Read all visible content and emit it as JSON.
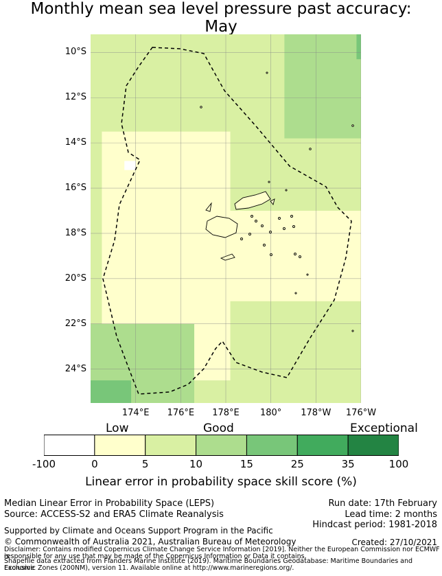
{
  "title_line1": "Monthly mean sea level pressure past accuracy:",
  "title_line2": "May",
  "chart_data": {
    "type": "heatmap",
    "title": "Monthly mean sea level pressure past accuracy: May",
    "lat_ticks": [
      "10°S",
      "12°S",
      "14°S",
      "16°S",
      "18°S",
      "20°S",
      "22°S",
      "24°S"
    ],
    "lon_ticks": [
      "174°E",
      "176°E",
      "178°E",
      "180°",
      "178°W",
      "176°W"
    ],
    "lat_range": [
      -25.5,
      -9.2
    ],
    "lon_range": [
      172.0,
      184.0
    ],
    "grid": true,
    "colorbar": {
      "label": "Linear error in probability space skill score (%)",
      "ticks": [
        "-100",
        "0",
        "5",
        "10",
        "15",
        "25",
        "35",
        "100"
      ],
      "bins": [
        {
          "from": -100,
          "to": 0,
          "color": "#ffffff"
        },
        {
          "from": 0,
          "to": 5,
          "color": "#ffffcc"
        },
        {
          "from": 5,
          "to": 10,
          "color": "#d9f0a3"
        },
        {
          "from": 10,
          "to": 15,
          "color": "#addd8e"
        },
        {
          "from": 15,
          "to": 25,
          "color": "#78c679"
        },
        {
          "from": 25,
          "to": 35,
          "color": "#41ab5d"
        },
        {
          "from": 35,
          "to": 100,
          "color": "#238443"
        }
      ],
      "categories": [
        "Low",
        "Good",
        "Exceptional"
      ]
    },
    "regions": [
      {
        "lat_range": [
          -25.5,
          -9.2
        ],
        "lon_range": [
          172.0,
          184.0
        ],
        "skill_bin": "5 to 10"
      },
      {
        "lat_range": [
          -24.5,
          -13.5
        ],
        "lon_range": [
          172.5,
          178.2
        ],
        "skill_bin": "0 to 5"
      },
      {
        "lat_range": [
          -21.0,
          -17.0
        ],
        "lon_range": [
          176.0,
          184.0
        ],
        "skill_bin": "0 to 5"
      },
      {
        "lat_range": [
          -15.2,
          -14.8
        ],
        "lon_range": [
          173.5,
          174.0
        ],
        "skill_bin": "-100 to 0"
      },
      {
        "lat_range": [
          -13.8,
          -9.2
        ],
        "lon_range": [
          180.6,
          184.0
        ],
        "skill_bin": "10 to 15"
      },
      {
        "lat_range": [
          -25.5,
          -22.0
        ],
        "lon_range": [
          172.0,
          176.6
        ],
        "skill_bin": "10 to 15"
      },
      {
        "lat_range": [
          -25.5,
          -24.5
        ],
        "lon_range": [
          172.0,
          173.8
        ],
        "skill_bin": "15 to 25"
      },
      {
        "lat_range": [
          -10.3,
          -9.2
        ],
        "lon_range": [
          183.8,
          184.0
        ],
        "skill_bin": "15 to 25"
      }
    ]
  },
  "labels": {
    "cat_low": "Low",
    "cat_good": "Good",
    "cat_exceptional": "Exceptional"
  },
  "info": {
    "method": "Median Linear Error in Probability Space (LEPS)",
    "source": "Source: ACCESS-S2 and ERA5 Climate Reanalysis",
    "run_date": "Run date: 17th February",
    "lead_time": "Lead time: 2 months",
    "hindcast": "Hindcast period: 1981-2018",
    "support": "Supported by Climate and Oceans Support Program in the Pacific",
    "copyright": "© Commonwealth of Australia 2021, Australian Bureau of Meteorology",
    "created": "Created: 27/10/2021",
    "disclaimer1": "Disclaimer: Contains modified Copernicus Climate Change Service Information [2019]. Neither the European Commission nor ECMWF is",
    "disclaimer2": "responsible for any use that may be made of the Copernicus Information or Data it contains.",
    "shapefile1": "Shapefile data extracted from Flanders Marine Institute (2019). Maritime Boundaries Geodatabase: Maritime Boundaries and Exclusive",
    "shapefile2": "Economic Zones (200NM), version 11. Available online at http://www.marineregions.org/."
  }
}
